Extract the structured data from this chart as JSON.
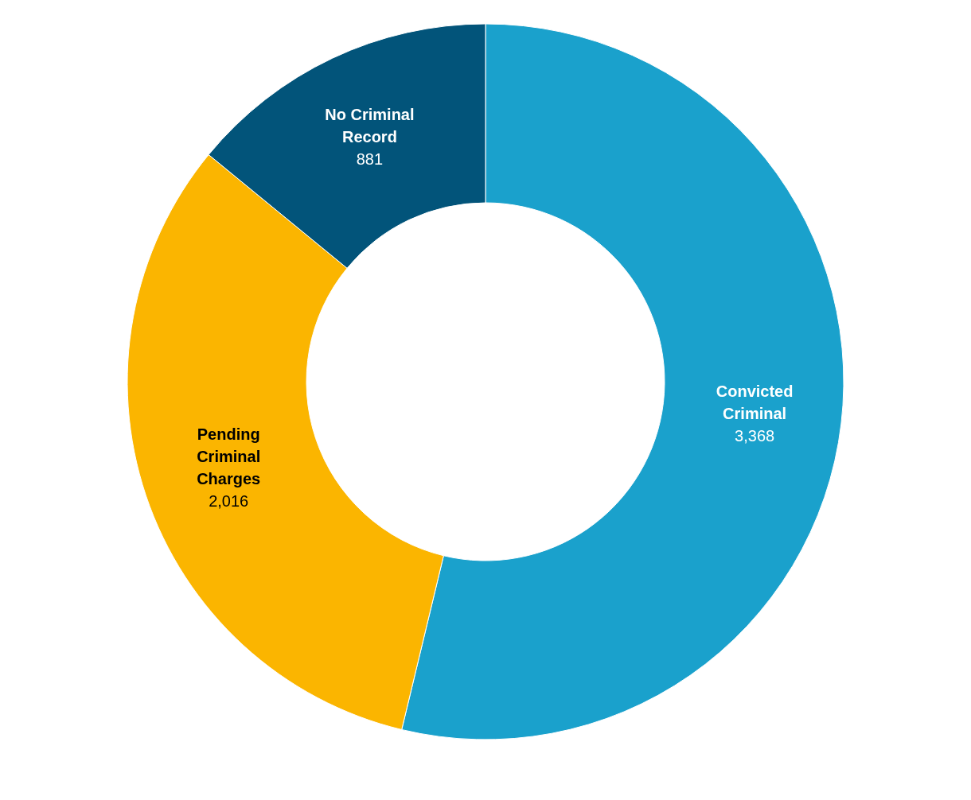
{
  "chart_data": {
    "type": "donut",
    "categories": [
      "Convicted Criminal",
      "Pending Criminal Charges",
      "No Criminal Record"
    ],
    "values": [
      3368,
      2016,
      881
    ],
    "value_labels": [
      "3,368",
      "2,016",
      "881"
    ],
    "colors": [
      "#1aa1cc",
      "#fbb500",
      "#02547a"
    ],
    "legend": false
  }
}
